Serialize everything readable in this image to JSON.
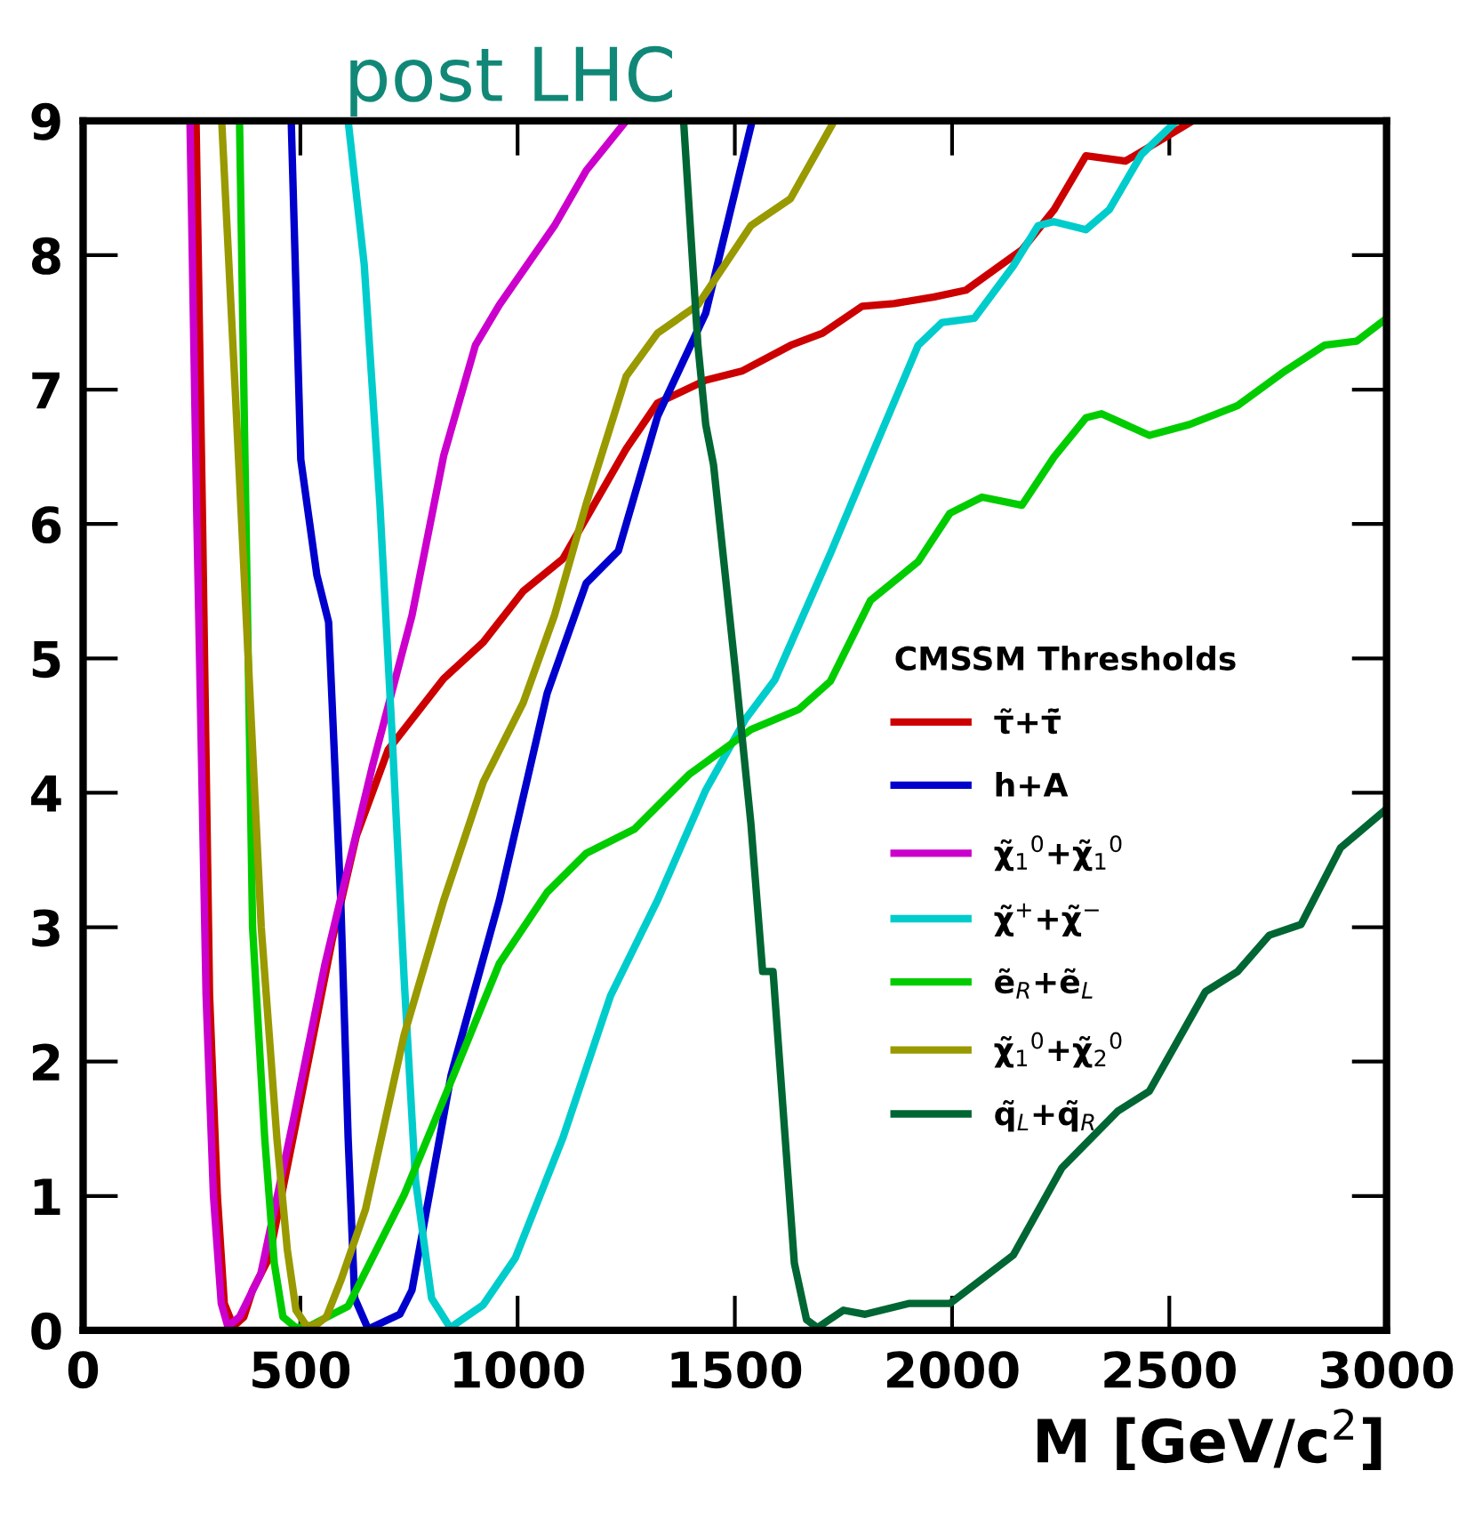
{
  "chart_data": {
    "type": "line",
    "title": "post LHC",
    "xlabel": "M [GeV/c$^{2}$]",
    "legend_title": "CMSSM Thresholds",
    "legend": "center right",
    "grid": false,
    "marker": "none",
    "line_style": "solid",
    "xlim": [
      0,
      3000
    ],
    "ylim": [
      0,
      9
    ],
    "xticks": [
      0,
      500,
      1000,
      1500,
      2000,
      2500,
      3000
    ],
    "yticks": [
      0,
      1,
      2,
      3,
      4,
      5,
      6,
      7,
      8,
      9
    ],
    "series": [
      {
        "name": "τ̃+τ̃̄",
        "color": "#cc0000",
        "x": [
          260,
          275,
          291,
          309,
          325,
          346,
          370,
          390,
          428,
          501,
          573,
          629,
          702,
          830,
          921,
          1013,
          1104,
          1250,
          1322,
          1433,
          1518,
          1629,
          1702,
          1793,
          1866,
          1959,
          2032,
          2161,
          2235,
          2308,
          2399,
          2472,
          2554
        ],
        "values": [
          9,
          6,
          2.5,
          1,
          0.2,
          0.03,
          0.1,
          0.3,
          0.54,
          1.72,
          2.9,
          3.68,
          4.32,
          4.85,
          5.12,
          5.5,
          5.74,
          6.56,
          6.9,
          7.07,
          7.14,
          7.33,
          7.42,
          7.62,
          7.64,
          7.69,
          7.74,
          8.04,
          8.34,
          8.74,
          8.7,
          8.84,
          9
        ]
      },
      {
        "name": "h+A",
        "color": "#0000cc",
        "x": [
          479,
          501,
          538,
          565,
          593,
          610,
          625,
          656,
          729,
          757,
          847,
          958,
          1068,
          1158,
          1232,
          1322,
          1433,
          1540
        ],
        "values": [
          9,
          6.48,
          5.62,
          5.27,
          3.2,
          1.43,
          0.24,
          0.01,
          0.12,
          0.3,
          1.9,
          3.2,
          4.74,
          5.56,
          5.8,
          6.8,
          7.57,
          9
        ]
      },
      {
        "name": "χ̃$_{1}$$^{0}$+χ̃$_{1}$$^{0}$",
        "color": "#cc00cc",
        "x": [
          246,
          262,
          283,
          300,
          318,
          333,
          360,
          409,
          483,
          557,
          666,
          757,
          830,
          903,
          958,
          1085,
          1158,
          1250
        ],
        "values": [
          9,
          6,
          2.5,
          1,
          0.2,
          0.03,
          0.1,
          0.42,
          1.55,
          2.73,
          4.2,
          5.32,
          6.51,
          7.33,
          7.63,
          8.22,
          8.63,
          9
        ]
      },
      {
        "name": "χ̃$^{+}$+χ̃$^{−}$",
        "color": "#00cccc",
        "x": [
          610,
          647,
          683,
          712,
          739,
          765,
          802,
          845,
          921,
          995,
          1104,
          1214,
          1322,
          1433,
          1525,
          1592,
          1720,
          1829,
          1922,
          1977,
          2051,
          2141,
          2198,
          2234,
          2308,
          2362,
          2436,
          2517
        ],
        "values": [
          9,
          7.93,
          6.15,
          4.38,
          2.61,
          1.12,
          0.24,
          0.02,
          0.19,
          0.54,
          1.43,
          2.49,
          3.2,
          4.02,
          4.55,
          4.84,
          5.78,
          6.62,
          7.33,
          7.5,
          7.53,
          7.92,
          8.22,
          8.25,
          8.19,
          8.34,
          8.75,
          9
        ]
      },
      {
        "name": "ẽ$_{R}$+ẽ$_{L}$",
        "color": "#00cc00",
        "x": [
          360,
          375,
          390,
          418,
          440,
          460,
          490,
          520,
          610,
          739,
          830,
          958,
          1068,
          1158,
          1269,
          1396,
          1537,
          1647,
          1720,
          1812,
          1922,
          1995,
          2069,
          2161,
          2235,
          2308,
          2344,
          2454,
          2546,
          2657,
          2767,
          2857,
          2931,
          3000
        ],
        "values": [
          9,
          6,
          3,
          1.43,
          0.5,
          0.1,
          0.02,
          0.03,
          0.18,
          1.01,
          1.72,
          2.73,
          3.26,
          3.55,
          3.73,
          4.14,
          4.47,
          4.62,
          4.83,
          5.43,
          5.72,
          6.08,
          6.2,
          6.14,
          6.5,
          6.79,
          6.82,
          6.66,
          6.74,
          6.88,
          7.14,
          7.33,
          7.36,
          7.53
        ]
      },
      {
        "name": "χ̃$_{1}$$^{0}$+χ̃$_{2}$$^{0}$",
        "color": "#999900",
        "x": [
          319,
          350,
          380,
          410,
          446,
          470,
          490,
          515,
          540,
          560,
          593,
          650,
          739,
          830,
          921,
          1013,
          1085,
          1158,
          1250,
          1322,
          1415,
          1537,
          1628,
          1729
        ],
        "values": [
          9,
          7,
          5,
          3,
          1.43,
          0.6,
          0.15,
          0.03,
          0.05,
          0.1,
          0.37,
          0.9,
          2.2,
          3.2,
          4.08,
          4.67,
          5.32,
          6.15,
          7.1,
          7.42,
          7.63,
          8.22,
          8.42,
          9
        ]
      },
      {
        "name": "q̃$_{L}$+q̃$_{R}$",
        "color": "#006633",
        "x": [
          1382,
          1415,
          1433,
          1451,
          1500,
          1537,
          1564,
          1588,
          1610,
          1637,
          1665,
          1690,
          1750,
          1800,
          1900,
          1995,
          2141,
          2253,
          2381,
          2454,
          2583,
          2657,
          2730,
          2803,
          2894,
          3000
        ],
        "values": [
          9,
          7.33,
          6.74,
          6.44,
          4.95,
          3.77,
          2.67,
          2.67,
          1.69,
          0.5,
          0.08,
          0.02,
          0.15,
          0.12,
          0.2,
          0.2,
          0.56,
          1.21,
          1.63,
          1.78,
          2.52,
          2.67,
          2.94,
          3.02,
          3.59,
          3.88
        ]
      }
    ]
  }
}
